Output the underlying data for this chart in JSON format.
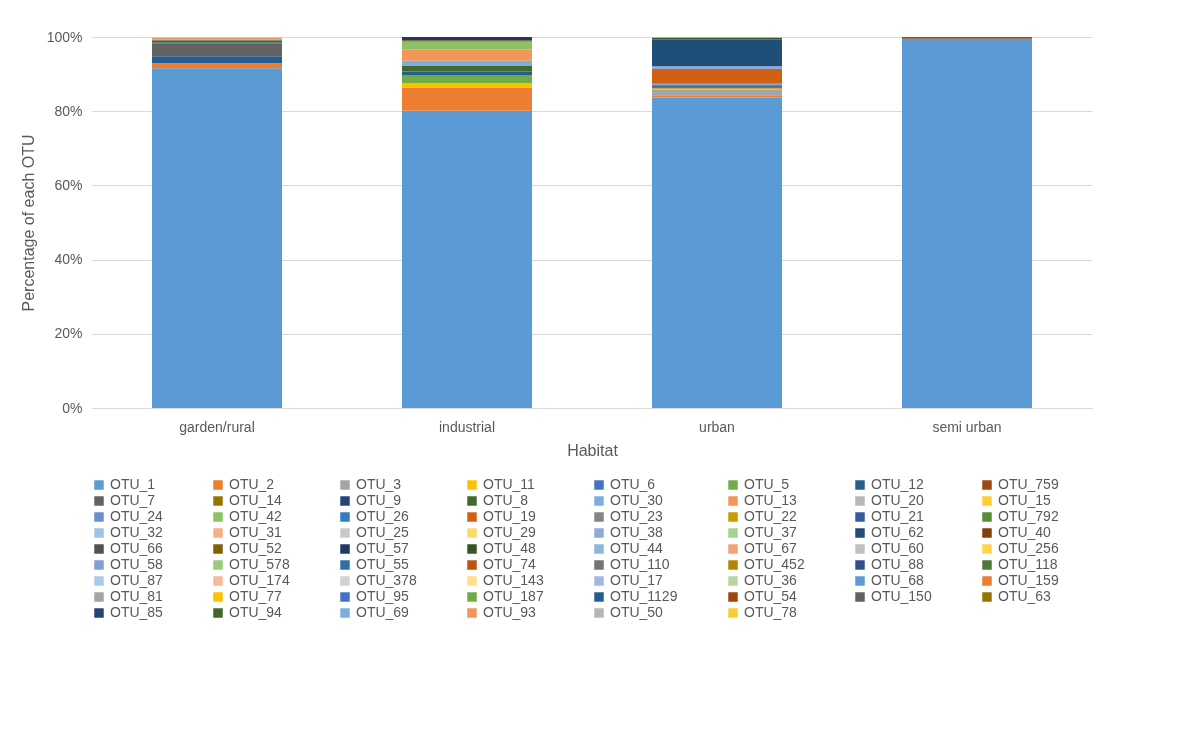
{
  "chart_data": {
    "type": "bar",
    "stacked": true,
    "xlabel": "Habitat",
    "ylabel": "Percentage of each OTU",
    "categories": [
      "garden/rural",
      "industrial",
      "urban",
      "semi urban"
    ],
    "ylim": [
      0,
      100
    ],
    "yticks": [
      {
        "value": 0,
        "label": "0%"
      },
      {
        "value": 20,
        "label": "20%"
      },
      {
        "value": 40,
        "label": "40%"
      },
      {
        "value": 60,
        "label": "60%"
      },
      {
        "value": 80,
        "label": "80%"
      },
      {
        "value": 100,
        "label": "100%"
      }
    ],
    "grid": "y",
    "legend": "bottom",
    "series": [
      {
        "name": "OTU_1",
        "color": "#5b9bd5",
        "values": [
          91.6,
          80.1,
          83.7,
          99.5
        ]
      },
      {
        "name": "OTU_2",
        "color": "#ed7d31",
        "values": [
          1.3,
          6.3,
          0.6,
          0
        ]
      },
      {
        "name": "OTU_3",
        "color": "#a5a5a5",
        "values": [
          0,
          0,
          1.4,
          0
        ]
      },
      {
        "name": "OTU_11",
        "color": "#ffc000",
        "values": [
          0,
          1.2,
          0.4,
          0
        ]
      },
      {
        "name": "OTU_6",
        "color": "#4472c4",
        "values": [
          0,
          0,
          0,
          0
        ]
      },
      {
        "name": "OTU_5",
        "color": "#70ad47",
        "values": [
          0,
          2.0,
          0,
          0
        ]
      },
      {
        "name": "OTU_12",
        "color": "#255e91",
        "values": [
          1.9,
          1.1,
          0,
          0
        ]
      },
      {
        "name": "OTU_759",
        "color": "#9e480e",
        "values": [
          0,
          0,
          0,
          0.5
        ]
      },
      {
        "name": "OTU_7",
        "color": "#636363",
        "values": [
          3.3,
          0,
          0,
          0
        ]
      },
      {
        "name": "OTU_14",
        "color": "#997300",
        "values": [
          0.2,
          0,
          0.5,
          0
        ]
      },
      {
        "name": "OTU_9",
        "color": "#264478",
        "values": [
          0.2,
          0,
          0.4,
          0
        ]
      },
      {
        "name": "OTU_8",
        "color": "#43682b",
        "values": [
          0.6,
          1.6,
          0,
          0
        ]
      },
      {
        "name": "OTU_30",
        "color": "#7cafdd",
        "values": [
          0.3,
          1.3,
          0.4,
          0
        ]
      },
      {
        "name": "OTU_13",
        "color": "#f1975a",
        "values": [
          0.3,
          3.0,
          0,
          0
        ]
      },
      {
        "name": "OTU_20",
        "color": "#b7b7b7",
        "values": [
          0,
          0,
          0,
          0
        ]
      },
      {
        "name": "OTU_15",
        "color": "#ffcd33",
        "values": [
          0.3,
          0,
          0,
          0
        ]
      },
      {
        "name": "OTU_24",
        "color": "#698ed0",
        "values": [
          0,
          0,
          0,
          0
        ]
      },
      {
        "name": "OTU_42",
        "color": "#8cc168",
        "values": [
          0,
          2.2,
          0,
          0
        ]
      },
      {
        "name": "OTU_26",
        "color": "#327dc2",
        "values": [
          0,
          0,
          0,
          0
        ]
      },
      {
        "name": "OTU_19",
        "color": "#d26012",
        "values": [
          0,
          0,
          4.0,
          0
        ]
      },
      {
        "name": "OTU_23",
        "color": "#848484",
        "values": [
          0,
          0,
          0,
          0
        ]
      },
      {
        "name": "OTU_22",
        "color": "#cc9a00",
        "values": [
          0,
          0,
          0,
          0
        ]
      },
      {
        "name": "OTU_21",
        "color": "#335aa1",
        "values": [
          0,
          0,
          0,
          0
        ]
      },
      {
        "name": "OTU_792",
        "color": "#5a8b39",
        "values": [
          0,
          0,
          0,
          0
        ]
      },
      {
        "name": "OTU_32",
        "color": "#9dc3e6",
        "values": [
          0,
          0,
          0,
          0
        ]
      },
      {
        "name": "OTU_31",
        "color": "#f4b183",
        "values": [
          0,
          0,
          0,
          0
        ]
      },
      {
        "name": "OTU_25",
        "color": "#c9c9c9",
        "values": [
          0,
          0,
          0,
          0
        ]
      },
      {
        "name": "OTU_29",
        "color": "#ffd966",
        "values": [
          0,
          0,
          0,
          0
        ]
      },
      {
        "name": "OTU_38",
        "color": "#8faadc",
        "values": [
          0,
          0,
          0.7,
          0
        ]
      },
      {
        "name": "OTU_37",
        "color": "#a9d18e",
        "values": [
          0,
          0,
          0,
          0
        ]
      },
      {
        "name": "OTU_62",
        "color": "#1f4e79",
        "values": [
          0,
          0,
          7.2,
          0
        ]
      },
      {
        "name": "OTU_40",
        "color": "#843c0c",
        "values": [
          0,
          0,
          0,
          0
        ]
      },
      {
        "name": "OTU_66",
        "color": "#525252",
        "values": [
          0,
          0,
          0,
          0
        ]
      },
      {
        "name": "OTU_52",
        "color": "#7f6000",
        "values": [
          0,
          0.3,
          0,
          0
        ]
      },
      {
        "name": "OTU_57",
        "color": "#203864",
        "values": [
          0,
          0.9,
          0,
          0
        ]
      },
      {
        "name": "OTU_48",
        "color": "#375623",
        "values": [
          0,
          0,
          0.4,
          0
        ]
      },
      {
        "name": "OTU_44",
        "color": "#8bb7e0",
        "values": [
          0,
          0,
          0,
          0
        ]
      },
      {
        "name": "OTU_67",
        "color": "#f2a373",
        "values": [
          0,
          0,
          0,
          0
        ]
      },
      {
        "name": "OTU_60",
        "color": "#c0c0c0",
        "values": [
          0,
          0,
          0,
          0
        ]
      },
      {
        "name": "OTU_256",
        "color": "#ffd44d",
        "values": [
          0,
          0,
          0,
          0
        ]
      },
      {
        "name": "OTU_58",
        "color": "#7f9fd5",
        "values": [
          0,
          0,
          0,
          0
        ]
      },
      {
        "name": "OTU_578",
        "color": "#9ccc7b",
        "values": [
          0,
          0,
          0,
          0
        ]
      },
      {
        "name": "OTU_55",
        "color": "#2e6fac",
        "values": [
          0,
          0,
          0,
          0
        ]
      },
      {
        "name": "OTU_74",
        "color": "#b95510",
        "values": [
          0,
          0,
          0,
          0
        ]
      },
      {
        "name": "OTU_110",
        "color": "#747474",
        "values": [
          0,
          0,
          0,
          0
        ]
      },
      {
        "name": "OTU_452",
        "color": "#b38800",
        "values": [
          0,
          0,
          0,
          0
        ]
      },
      {
        "name": "OTU_88",
        "color": "#2f4f8e",
        "values": [
          0,
          0,
          0,
          0
        ]
      },
      {
        "name": "OTU_118",
        "color": "#4f7a32",
        "values": [
          0,
          0,
          0,
          0
        ]
      },
      {
        "name": "OTU_87",
        "color": "#abc9e8",
        "values": [
          0,
          0,
          0,
          0
        ]
      },
      {
        "name": "OTU_174",
        "color": "#f5bb96",
        "values": [
          0,
          0,
          0,
          0
        ]
      },
      {
        "name": "OTU_378",
        "color": "#d3d3d3",
        "values": [
          0,
          0,
          0,
          0
        ]
      },
      {
        "name": "OTU_143",
        "color": "#ffe08a",
        "values": [
          0,
          0,
          0,
          0
        ]
      },
      {
        "name": "OTU_17",
        "color": "#a2b8e3",
        "values": [
          0,
          0,
          0,
          0
        ]
      },
      {
        "name": "OTU_36",
        "color": "#b5d7a0",
        "values": [
          0,
          0,
          0,
          0
        ]
      },
      {
        "name": "OTU_68",
        "color": "#5a9ad6",
        "values": [
          0,
          0,
          0,
          0
        ]
      },
      {
        "name": "OTU_159",
        "color": "#ec7c30",
        "values": [
          0,
          0,
          0,
          0
        ]
      },
      {
        "name": "OTU_81",
        "color": "#a4a4a4",
        "values": [
          0,
          0,
          0,
          0
        ]
      },
      {
        "name": "OTU_77",
        "color": "#fec000",
        "values": [
          0,
          0,
          0,
          0
        ]
      },
      {
        "name": "OTU_95",
        "color": "#4571c5",
        "values": [
          0,
          0,
          0,
          0
        ]
      },
      {
        "name": "OTU_187",
        "color": "#6fac46",
        "values": [
          0,
          0,
          0,
          0
        ]
      },
      {
        "name": "OTU_1129",
        "color": "#245d90",
        "values": [
          0,
          0,
          0,
          0
        ]
      },
      {
        "name": "OTU_54",
        "color": "#9d470d",
        "values": [
          0,
          0,
          0,
          0
        ]
      },
      {
        "name": "OTU_150",
        "color": "#626262",
        "values": [
          0,
          0,
          0,
          0
        ]
      },
      {
        "name": "OTU_63",
        "color": "#987200",
        "values": [
          0,
          0,
          0,
          0
        ]
      },
      {
        "name": "OTU_85",
        "color": "#254377",
        "values": [
          0,
          0,
          0,
          0
        ]
      },
      {
        "name": "OTU_94",
        "color": "#42672a",
        "values": [
          0,
          0,
          0,
          0
        ]
      },
      {
        "name": "OTU_69",
        "color": "#7baedc",
        "values": [
          0,
          0,
          0,
          0
        ]
      },
      {
        "name": "OTU_93",
        "color": "#f09659",
        "values": [
          0,
          0,
          0.2,
          0
        ]
      },
      {
        "name": "OTU_50",
        "color": "#b6b6b6",
        "values": [
          0,
          0,
          0,
          0
        ]
      },
      {
        "name": "OTU_78",
        "color": "#fecc32",
        "values": [
          0,
          0,
          0,
          0
        ]
      }
    ]
  }
}
